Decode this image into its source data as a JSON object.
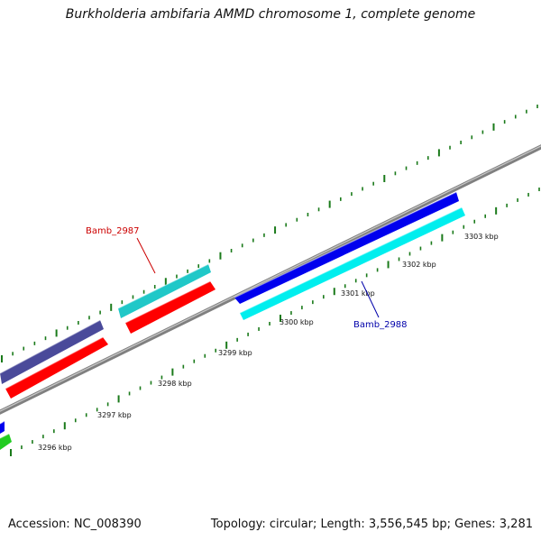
{
  "title": "Burkholderia ambifaria AMMD chromosome 1, complete genome",
  "footer": {
    "accession": "Accession: NC_008390",
    "summary": "Topology: circular; Length: 3,556,545 bp; Genes: 3,281"
  },
  "ticks": [
    {
      "label": "3296 kbp",
      "kbp": 3296
    },
    {
      "label": "3297 kbp",
      "kbp": 3297
    },
    {
      "label": "3298 kbp",
      "kbp": 3298
    },
    {
      "label": "3299 kbp",
      "kbp": 3299
    },
    {
      "label": "3300 kbp",
      "kbp": 3300
    },
    {
      "label": "3301 kbp",
      "kbp": 3301
    },
    {
      "label": "3302 kbp",
      "kbp": 3302
    },
    {
      "label": "3303 kbp",
      "kbp": 3303
    }
  ],
  "features": [
    {
      "name": "Bamb_2987",
      "label_color": "#cc0000"
    },
    {
      "name": "Bamb_2988",
      "label_color": "#0000aa"
    }
  ],
  "colors": {
    "backbone": "#808080",
    "tick": "#1a7a1a",
    "gene_red": "#ff0000",
    "gene_cyan": "#20c8c8",
    "gene_blue": "#0000ee",
    "gene_lightcyan": "#00eeee",
    "gene_slate": "#4a4a9a",
    "gene_green": "#22cc22"
  }
}
